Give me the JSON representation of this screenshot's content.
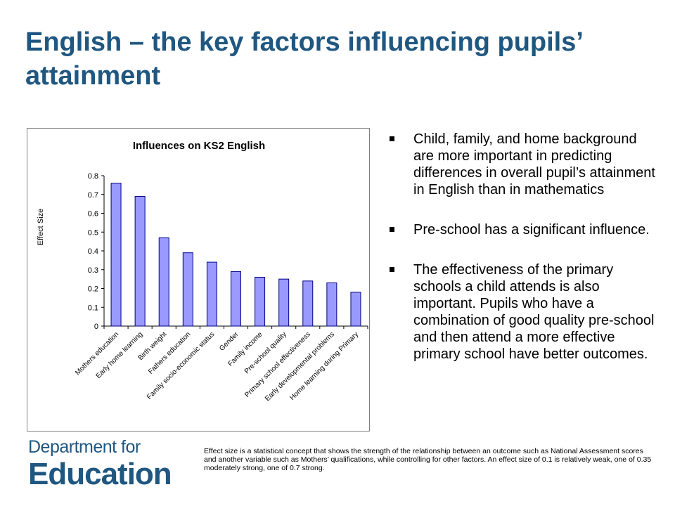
{
  "page": {
    "title": "English – the key factors influencing pupils’ attainment"
  },
  "bullets": [
    "Child, family, and home background are more important in predicting differences in overall  pupil’s attainment in English than in mathematics",
    "Pre-school has a significant influence.",
    "The effectiveness of the primary schools a child attends is also important. Pupils who have a combination of good quality pre-school and then attend a more effective primary school have better outcomes."
  ],
  "logo": {
    "line1": "Department for",
    "line2": "Education"
  },
  "footnote": "Effect size is a statistical concept that shows the strength of the relationship between an outcome such as National Assessment scores and another variable such as Mothers’ qualifications, while controlling for other factors.  An effect size of 0.1 is relatively weak,  one of 0.35 moderately strong, one of 0.7 strong.",
  "colors": {
    "title": "#1f5780",
    "bar_fill": "#9999ff",
    "bar_stroke": "#000080"
  },
  "chart_data": {
    "type": "bar",
    "title": "Influences on KS2 English",
    "xlabel": "",
    "ylabel": "Effect Size",
    "ylim": [
      0,
      0.8
    ],
    "yticks": [
      "0",
      "0.1",
      "0.2",
      "0.3",
      "0.4",
      "0.5",
      "0.6",
      "0.7",
      "0.8"
    ],
    "grid": false,
    "legend": "none",
    "categories": [
      "Mothers education",
      "Early home learning",
      "Birth weight",
      "Fathers education",
      "Family socio-economic status",
      "Gender",
      "Family income",
      "Pre-school quality",
      "Primary school effectiveness",
      "Early developmental problems",
      "Home learning during Primary"
    ],
    "values": [
      0.76,
      0.69,
      0.47,
      0.39,
      0.34,
      0.29,
      0.26,
      0.25,
      0.24,
      0.23,
      0.18
    ]
  }
}
